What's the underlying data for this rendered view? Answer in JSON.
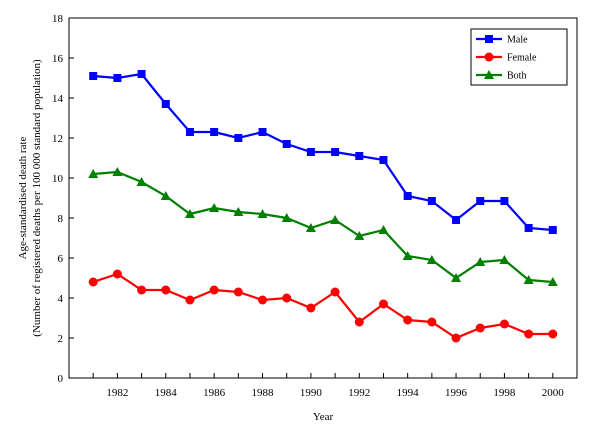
{
  "chart_data": {
    "type": "line",
    "xlabel": "Year",
    "ylabel_line1": "Age-standardised death rate",
    "ylabel_line2": "(Number of registered deaths per 100 000 standard population)",
    "x": [
      1981,
      1982,
      1983,
      1984,
      1985,
      1986,
      1987,
      1988,
      1989,
      1990,
      1991,
      1992,
      1993,
      1994,
      1995,
      1996,
      1997,
      1998,
      1999,
      2000
    ],
    "xticks": [
      1982,
      1984,
      1986,
      1988,
      1990,
      1992,
      1994,
      1996,
      1998,
      2000
    ],
    "xlim": [
      1980,
      2001
    ],
    "yticks": [
      0,
      2,
      4,
      6,
      8,
      10,
      12,
      14,
      16,
      18
    ],
    "ylim": [
      0,
      18
    ],
    "grid": false,
    "legend_position": "top-right",
    "series": [
      {
        "name": "Male",
        "color": "#0000ff",
        "marker": "square",
        "values": [
          15.1,
          15.0,
          15.2,
          13.7,
          12.3,
          12.3,
          12.0,
          12.3,
          11.7,
          11.3,
          11.3,
          11.1,
          10.9,
          9.1,
          8.85,
          7.9,
          8.85,
          8.85,
          7.5,
          7.4
        ]
      },
      {
        "name": "Female",
        "color": "#ff0000",
        "marker": "circle",
        "values": [
          4.8,
          5.2,
          4.4,
          4.4,
          3.9,
          4.4,
          4.3,
          3.9,
          4.0,
          3.5,
          4.3,
          2.8,
          3.7,
          2.9,
          2.8,
          2.0,
          2.5,
          2.7,
          2.2,
          2.2
        ]
      },
      {
        "name": "Both",
        "color": "#008000",
        "marker": "triangle",
        "values": [
          10.2,
          10.3,
          9.8,
          9.1,
          8.2,
          8.5,
          8.3,
          8.2,
          8.0,
          7.5,
          7.9,
          7.1,
          7.4,
          6.1,
          5.9,
          5.0,
          5.8,
          5.9,
          4.9,
          4.8
        ]
      }
    ]
  }
}
